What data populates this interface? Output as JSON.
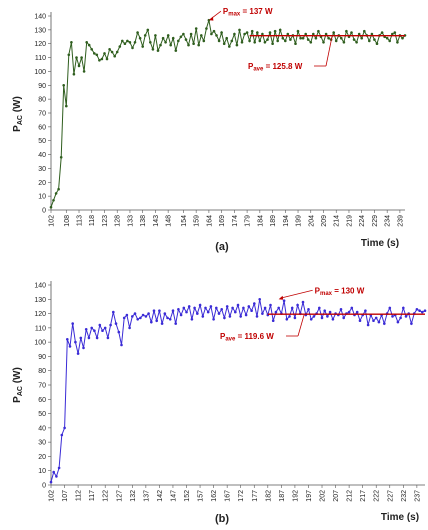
{
  "chart_data": [
    {
      "type": "line",
      "panel_label": "(a)",
      "ylabel": "P",
      "ylabel_sub": "AC",
      "ylabel_unit": " (W)",
      "xlabel": "Time (s)",
      "ylim": [
        0,
        140
      ],
      "yticks": [
        "0",
        "10",
        "20",
        "30",
        "40",
        "50",
        "60",
        "70",
        "80",
        "90",
        "100",
        "110",
        "120",
        "130",
        "140"
      ],
      "xlim": [
        102,
        241
      ],
      "xticks": [
        "102",
        "108",
        "113",
        "118",
        "123",
        "128",
        "133",
        "138",
        "143",
        "148",
        "154",
        "159",
        "164",
        "169",
        "174",
        "179",
        "184",
        "189",
        "194",
        "199",
        "204",
        "209",
        "214",
        "219",
        "224",
        "229",
        "234",
        "239"
      ],
      "series": [
        {
          "color": "#2f5e1e",
          "x": [
            102,
            103,
            104,
            105,
            106,
            107,
            108,
            109,
            110,
            111,
            112,
            113,
            114,
            115,
            116,
            117,
            118,
            119,
            120,
            121,
            122,
            123,
            124,
            125,
            126,
            127,
            128,
            129,
            130,
            131,
            132,
            133,
            134,
            135,
            136,
            137,
            138,
            139,
            140,
            141,
            142,
            143,
            144,
            145,
            146,
            147,
            148,
            149,
            150,
            151,
            152,
            153,
            154,
            155,
            156,
            157,
            158,
            159,
            160,
            161,
            162,
            163,
            164,
            165,
            166,
            167,
            168,
            169,
            170,
            171,
            172,
            173,
            174,
            175,
            176,
            177,
            178,
            179,
            180,
            181,
            182,
            183,
            184,
            185,
            186,
            187,
            188,
            189,
            190,
            191,
            192,
            193,
            194,
            195,
            196,
            197,
            198,
            199,
            200,
            201,
            202,
            203,
            204,
            205,
            206,
            207,
            208,
            209,
            210,
            211,
            212,
            213,
            214,
            215,
            216,
            217,
            218,
            219,
            220,
            221,
            222,
            223,
            224,
            225,
            226,
            227,
            228,
            229,
            230,
            231,
            232,
            233,
            234,
            235,
            236,
            237,
            238,
            239,
            240,
            241
          ],
          "y": [
            2,
            7,
            12,
            15,
            38,
            90,
            75,
            112,
            121,
            98,
            110,
            104,
            110,
            100,
            121,
            119,
            116,
            113,
            112,
            108,
            109,
            113,
            109,
            116,
            114,
            111,
            114,
            118,
            122,
            120,
            122,
            121,
            117,
            121,
            128,
            124,
            118,
            126,
            130,
            121,
            116,
            126,
            115,
            119,
            124,
            121,
            126,
            119,
            124,
            115,
            122,
            125,
            127,
            123,
            119,
            127,
            120,
            131,
            119,
            126,
            122,
            131,
            137,
            127,
            129,
            126,
            122,
            128,
            120,
            124,
            118,
            122,
            127,
            119,
            130,
            121,
            127,
            128,
            122,
            129,
            121,
            128,
            122,
            127,
            121,
            123,
            128,
            120,
            129,
            122,
            130,
            124,
            122,
            127,
            123,
            126,
            120,
            129,
            124,
            124,
            127,
            123,
            121,
            127,
            124,
            129,
            125,
            121,
            127,
            124,
            123,
            128,
            122,
            126,
            124,
            121,
            129,
            125,
            128,
            123,
            121,
            127,
            124,
            129,
            126,
            122,
            127,
            123,
            120,
            126,
            128,
            125,
            124,
            122,
            127,
            128,
            121,
            126,
            124,
            126
          ]
        }
      ],
      "annotations": [
        {
          "base": "P",
          "sub": "max",
          "rest": " = 137 W",
          "x": 164,
          "y": 137
        },
        {
          "base": "P",
          "sub": "ave",
          "rest": " = 125.8 W",
          "y": 125.8
        }
      ],
      "average_line": {
        "y": 125.8,
        "x_start": 180,
        "x_end": 241,
        "color": "#c00000"
      }
    },
    {
      "type": "line",
      "panel_label": "(b)",
      "ylabel": "P",
      "ylabel_sub": "AC",
      "ylabel_unit": " (W)",
      "xlabel": "Time (s)",
      "ylim": [
        0,
        140
      ],
      "yticks": [
        "0",
        "10",
        "20",
        "30",
        "40",
        "50",
        "60",
        "70",
        "80",
        "90",
        "100",
        "110",
        "120",
        "130",
        "140"
      ],
      "xlim": [
        102,
        240
      ],
      "xticks": [
        "102",
        "107",
        "112",
        "117",
        "122",
        "127",
        "132",
        "137",
        "142",
        "147",
        "152",
        "157",
        "162",
        "167",
        "172",
        "177",
        "182",
        "187",
        "192",
        "197",
        "202",
        "207",
        "212",
        "217",
        "222",
        "227",
        "232",
        "237"
      ],
      "series": [
        {
          "color": "#3a2bd6",
          "x": [
            102,
            103,
            104,
            105,
            106,
            107,
            108,
            109,
            110,
            111,
            112,
            113,
            114,
            115,
            116,
            117,
            118,
            119,
            120,
            121,
            122,
            123,
            124,
            125,
            126,
            127,
            128,
            129,
            130,
            131,
            132,
            133,
            134,
            135,
            136,
            137,
            138,
            139,
            140,
            141,
            142,
            143,
            144,
            145,
            146,
            147,
            148,
            149,
            150,
            151,
            152,
            153,
            154,
            155,
            156,
            157,
            158,
            159,
            160,
            161,
            162,
            163,
            164,
            165,
            166,
            167,
            168,
            169,
            170,
            171,
            172,
            173,
            174,
            175,
            176,
            177,
            178,
            179,
            180,
            181,
            182,
            183,
            184,
            185,
            186,
            187,
            188,
            189,
            190,
            191,
            192,
            193,
            194,
            195,
            196,
            197,
            198,
            199,
            200,
            201,
            202,
            203,
            204,
            205,
            206,
            207,
            208,
            209,
            210,
            211,
            212,
            213,
            214,
            215,
            216,
            217,
            218,
            219,
            220,
            221,
            222,
            223,
            224,
            225,
            226,
            227,
            228,
            229,
            230,
            231,
            232,
            233,
            234,
            235,
            236,
            237,
            238,
            239,
            240
          ],
          "y": [
            2,
            9,
            6,
            12,
            35,
            40,
            102,
            97,
            113,
            100,
            92,
            103,
            96,
            109,
            103,
            110,
            108,
            103,
            112,
            108,
            110,
            103,
            112,
            121,
            113,
            107,
            98,
            117,
            119,
            110,
            118,
            120,
            116,
            117,
            119,
            118,
            120,
            114,
            122,
            115,
            122,
            113,
            120,
            117,
            116,
            122,
            113,
            123,
            119,
            124,
            121,
            125,
            116,
            124,
            120,
            126,
            118,
            124,
            121,
            125,
            116,
            124,
            120,
            123,
            117,
            125,
            118,
            124,
            121,
            126,
            118,
            124,
            119,
            125,
            122,
            127,
            118,
            130,
            120,
            124,
            119,
            126,
            115,
            121,
            124,
            120,
            129,
            116,
            118,
            124,
            117,
            126,
            120,
            128,
            119,
            123,
            116,
            118,
            120,
            124,
            117,
            122,
            118,
            121,
            116,
            120,
            119,
            123,
            117,
            120,
            121,
            124,
            119,
            121,
            115,
            119,
            122,
            112,
            119,
            115,
            117,
            114,
            119,
            113,
            120,
            124,
            118,
            119,
            114,
            117,
            124,
            118,
            120,
            113,
            120,
            123,
            122,
            121,
            122
          ],
          "_note": ""
        }
      ],
      "annotations": [
        {
          "base": "P",
          "sub": "max",
          "rest": " = 130 W",
          "x": 186,
          "y": 130
        },
        {
          "base": "P",
          "sub": "ave",
          "rest": " = 119.6 W",
          "y": 119.6
        }
      ],
      "average_line": {
        "y": 119.6,
        "x_start": 182,
        "x_end": 240,
        "color": "#c00000"
      }
    }
  ]
}
